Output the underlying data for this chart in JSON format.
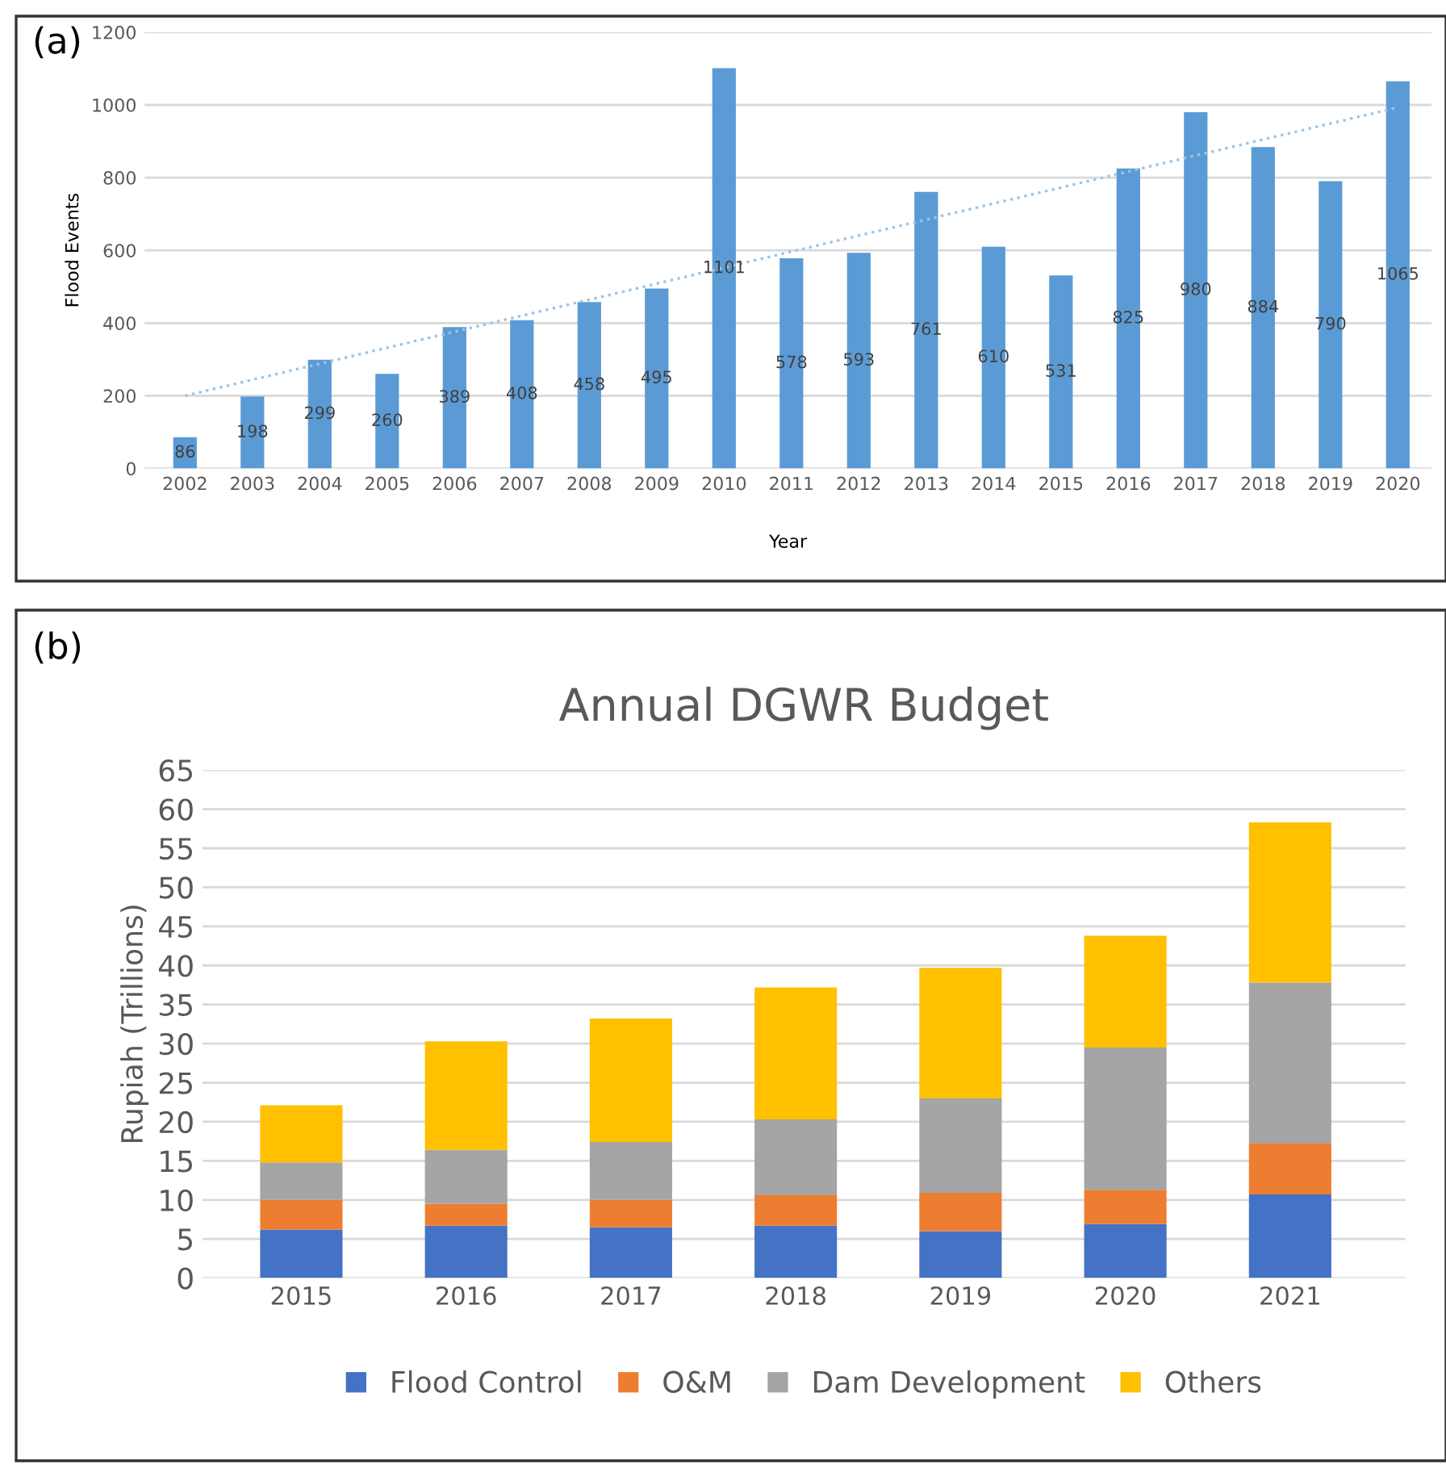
{
  "chart_data": [
    {
      "type": "bar",
      "xlabel": "Year",
      "ylabel": "Flood Events",
      "annotations": [
        "(a)"
      ],
      "categories": [
        "2002",
        "2003",
        "2004",
        "2005",
        "2006",
        "2007",
        "2008",
        "2009",
        "2010",
        "2011",
        "2012",
        "2013",
        "2014",
        "2015",
        "2016",
        "2017",
        "2018",
        "2019",
        "2020"
      ],
      "series": [
        {
          "color": "#5b9bd5",
          "values": [
            86,
            198,
            299,
            260,
            389,
            408,
            458,
            495,
            1101,
            578,
            593,
            761,
            610,
            531,
            825,
            980,
            884,
            790,
            1065
          ],
          "value_labels": [
            "86",
            "198",
            "299",
            "260",
            "389",
            "408",
            "458",
            "495",
            "1101",
            "578",
            "593",
            "761",
            "610",
            "531",
            "825",
            "980",
            "884",
            "790",
            "1065"
          ]
        },
        {
          "type": "line",
          "color": "#9dc3e6",
          "line_style": "dotted",
          "values": [
            200,
            null,
            null,
            null,
            null,
            null,
            null,
            null,
            null,
            null,
            null,
            null,
            null,
            null,
            null,
            null,
            null,
            null,
            993
          ]
        }
      ],
      "ylim": [
        0,
        1200
      ],
      "yticks": [
        0,
        200,
        400,
        600,
        800,
        1000,
        1200
      ],
      "grid": "y",
      "legend": false
    },
    {
      "type": "bar",
      "stacked": true,
      "title": "Annual DGWR Budget",
      "ylabel": "Rupiah (Trillions)",
      "annotations": [
        "(b)"
      ],
      "categories": [
        "2015",
        "2016",
        "2017",
        "2018",
        "2019",
        "2020",
        "2021"
      ],
      "series": [
        {
          "name": "Flood Control",
          "color": "#4472c4",
          "values": [
            6.2,
            6.7,
            6.5,
            6.7,
            6.0,
            6.9,
            10.7
          ]
        },
        {
          "name": "O&M",
          "color": "#ed7d31",
          "values": [
            3.8,
            2.8,
            3.5,
            3.9,
            4.9,
            4.4,
            6.5
          ]
        },
        {
          "name": "Dam Development",
          "color": "#a5a5a5",
          "values": [
            4.8,
            6.9,
            7.4,
            9.7,
            12.1,
            18.2,
            20.6
          ]
        },
        {
          "name": "Others",
          "color": "#ffc000",
          "values": [
            7.3,
            13.9,
            15.8,
            16.9,
            16.7,
            14.3,
            20.5
          ]
        }
      ],
      "ylim": [
        0,
        65
      ],
      "yticks": [
        0,
        5,
        10,
        15,
        20,
        25,
        30,
        35,
        40,
        45,
        50,
        55,
        60,
        65
      ],
      "grid": "y",
      "legend": "bottom"
    }
  ]
}
